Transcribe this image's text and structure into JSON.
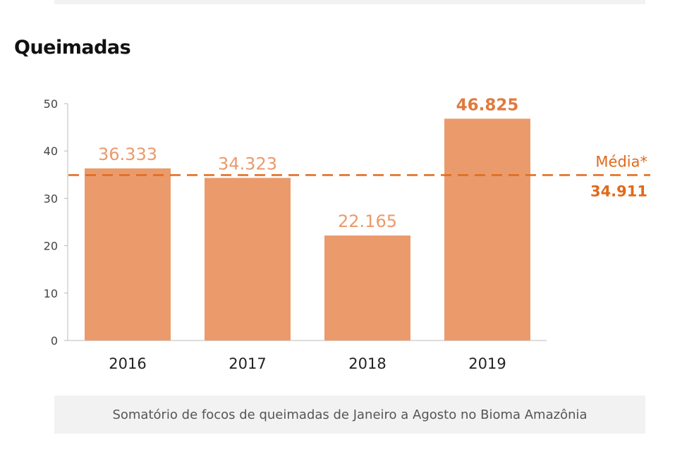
{
  "title": "Queimadas",
  "caption": "Somatório de focos de queimadas de Janeiro a Agosto no Bioma Amazônia",
  "colors": {
    "bar": "#eb9a6c",
    "bar_label": "#eb9a6c",
    "bar_label_highlight": "#e07a3e",
    "average_line": "#e06a1c",
    "average_text": "#e06a1c",
    "axis": "#bbbbbb",
    "tick_text": "#444444"
  },
  "chart_data": {
    "type": "bar",
    "categories": [
      "2016",
      "2017",
      "2018",
      "2019"
    ],
    "values": [
      36333,
      34323,
      22165,
      46825
    ],
    "value_labels": [
      "36.333",
      "34.323",
      "22.165",
      "46.825"
    ],
    "highlight_index": 3,
    "title": "Queimadas",
    "xlabel": "",
    "ylabel": "",
    "ylim": [
      0,
      50000
    ],
    "yticks": [
      0,
      10,
      20,
      30,
      40,
      50
    ],
    "ytick_scale": 1000,
    "grid": false,
    "legend": "none",
    "reference_line": {
      "label": "Média*",
      "value": 34911,
      "value_label": "34.911"
    }
  }
}
